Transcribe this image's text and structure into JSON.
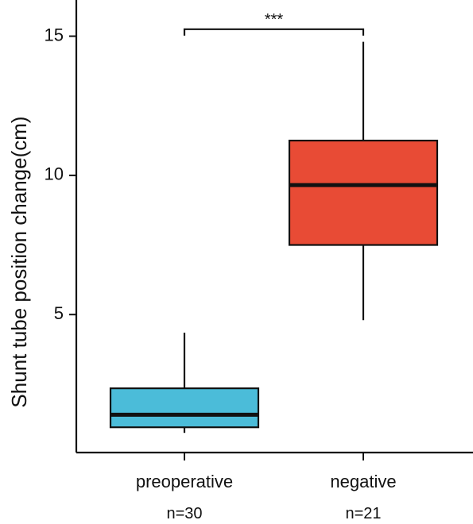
{
  "chart_data": {
    "type": "box",
    "ylabel": "Shunt tube position change(cm)",
    "ylim": [
      0.1,
      16.3
    ],
    "yticks": [
      5,
      10,
      15
    ],
    "categories": [
      "preoperative",
      "negative"
    ],
    "counts": [
      "n=30",
      "n=21"
    ],
    "boxes": [
      {
        "category": "preoperative",
        "n": "n=30",
        "whisker_low": 0.75,
        "q1": 0.95,
        "median": 1.4,
        "q3": 2.35,
        "whisker_high": 4.35,
        "color": "#4bbcd9"
      },
      {
        "category": "negative",
        "n": "n=21",
        "whisker_low": 4.8,
        "q1": 7.5,
        "median": 9.65,
        "q3": 11.25,
        "whisker_high": 14.8,
        "color": "#e84b35"
      }
    ],
    "significance": {
      "from": "preoperative",
      "to": "negative",
      "label": "***",
      "y": 15.25
    }
  }
}
